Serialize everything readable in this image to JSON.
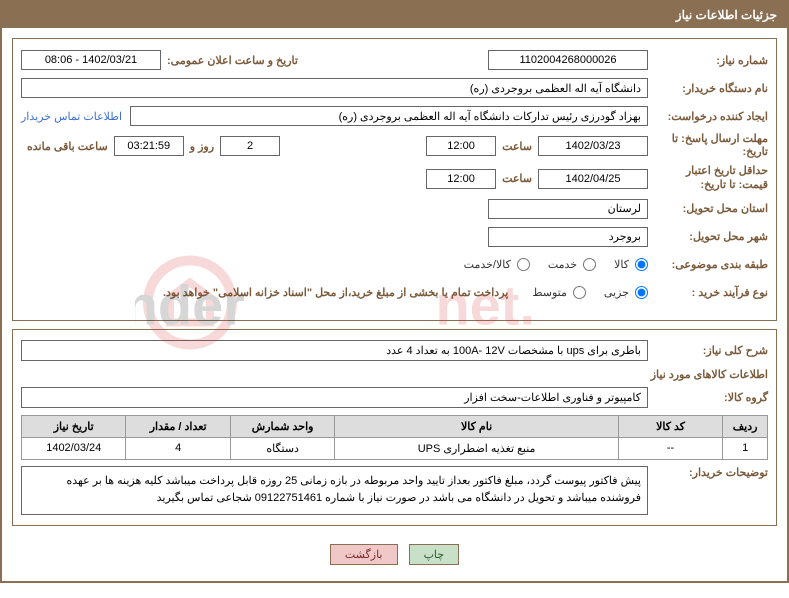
{
  "header": {
    "title": "جزئیات اطلاعات نیاز"
  },
  "fields": {
    "reqNo": {
      "label": "شماره نیاز:",
      "value": "1102004268000026"
    },
    "announce": {
      "label": "تاریخ و ساعت اعلان عمومی:",
      "value": "1402/03/21 - 08:06"
    },
    "buyerOrg": {
      "label": "نام دستگاه خریدار:",
      "value": "دانشگاه آیه اله العظمی بروجردی (ره)"
    },
    "requester": {
      "label": "ایجاد کننده درخواست:",
      "value": "بهزاد گودرزی رئیس تدارکات دانشگاه آیه اله العظمی بروجردی (ره)"
    },
    "contactLink": "اطلاعات تماس خریدار",
    "deadline": {
      "label": "مهلت ارسال پاسخ: تا تاریخ:",
      "date": "1402/03/23",
      "hourLabel": "ساعت",
      "hour": "12:00",
      "days": "2",
      "daysLabel": "روز و",
      "countdown": "03:21:59",
      "remainLabel": "ساعت باقی مانده"
    },
    "validity": {
      "label": "حداقل تاریخ اعتبار قیمت: تا تاریخ:",
      "date": "1402/04/25",
      "hourLabel": "ساعت",
      "hour": "12:00"
    },
    "province": {
      "label": "استان محل تحویل:",
      "value": "لرستان"
    },
    "city": {
      "label": "شهر محل تحویل:",
      "value": "بروجرد"
    },
    "category": {
      "label": "طبقه بندی موضوعی:",
      "opts": [
        "کالا",
        "خدمت",
        "کالا/خدمت"
      ],
      "selected": 0
    },
    "process": {
      "label": "نوع فرآیند خرید :",
      "opts": [
        "جزیی",
        "متوسط"
      ],
      "selected": 0,
      "note": "پرداخت تمام یا بخشی از مبلغ خرید،از محل \"اسناد خزانه اسلامی\" خواهد بود."
    }
  },
  "detail": {
    "descLabel": "شرح کلی نیاز:",
    "descValue": "باطری برای ups با مشخصات 100A- 12V به تعداد 4 عدد",
    "itemsTitle": "اطلاعات کالاهای مورد نیاز",
    "groupLabel": "گروه کالا:",
    "groupValue": "کامپیوتر و فناوری اطلاعات-سخت افزار"
  },
  "table": {
    "headers": [
      "ردیف",
      "کد کالا",
      "نام کالا",
      "واحد شمارش",
      "تعداد / مقدار",
      "تاریخ نیاز"
    ],
    "widths": [
      "6%",
      "14%",
      "38%",
      "14%",
      "14%",
      "14%"
    ],
    "rows": [
      [
        "1",
        "--",
        "منبع تغذیه اضطراری UPS",
        "دستگاه",
        "4",
        "1402/03/24"
      ]
    ]
  },
  "buyerNote": {
    "label": "توضیحات خریدار:",
    "text": "پیش فاکتور پیوست گردد، مبلغ فاکتور بعداز تایید واحد مربوطه در بازه زمانی 25 روزه قابل پرداخت میباشد کلیه هزینه ها بر عهده فروشنده میباشد و تحویل در دانشگاه می باشد در صورت نیاز با شماره 09122751461 شجاعی تماس بگیرید"
  },
  "buttons": {
    "print": "چاپ",
    "back": "بازگشت"
  },
  "watermark": {
    "text": "AriaTender.net",
    "color": "#d33"
  },
  "colors": {
    "frame": "#8a6f53",
    "labelText": "#7a5a3a",
    "link": "#3a6fd8"
  }
}
